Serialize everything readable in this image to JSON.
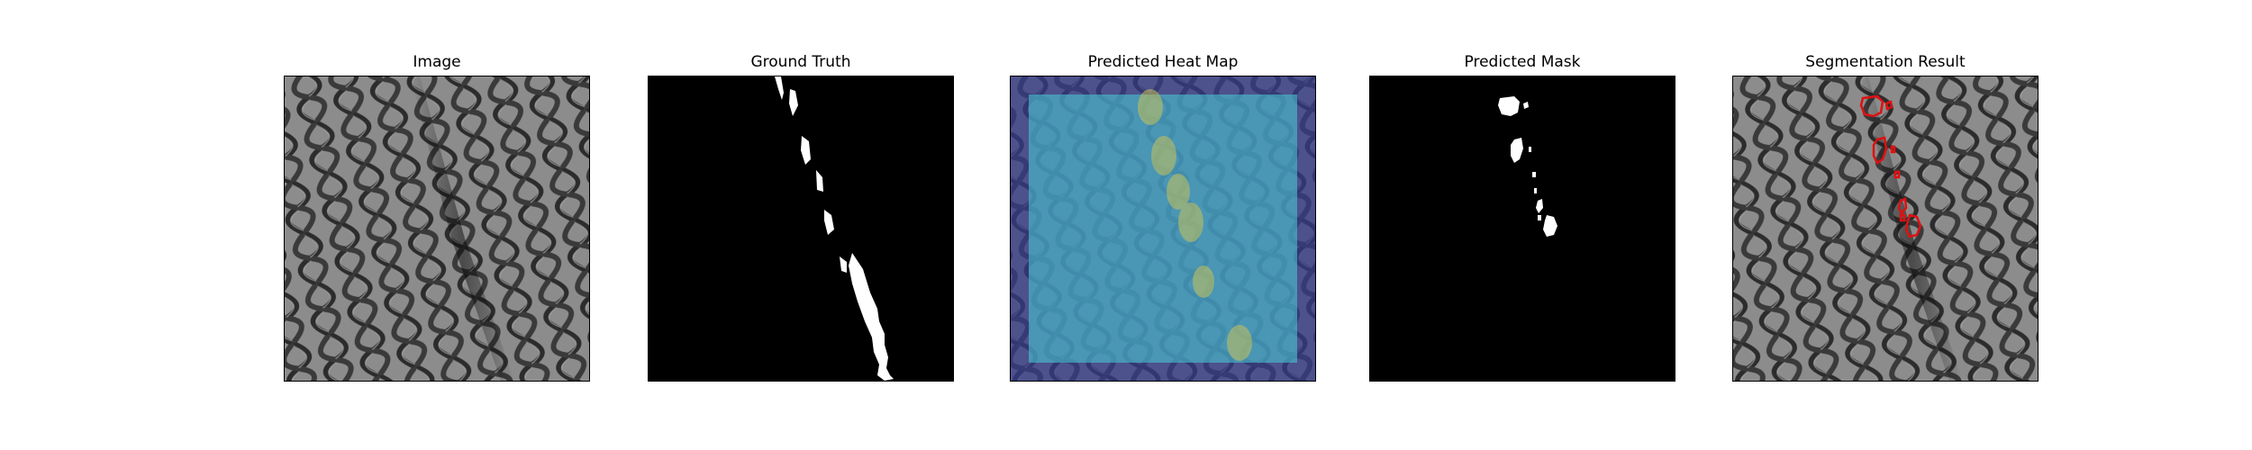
{
  "figure": {
    "panels": [
      {
        "title": "Image"
      },
      {
        "title": "Ground Truth"
      },
      {
        "title": "Predicted Heat Map"
      },
      {
        "title": "Predicted Mask"
      },
      {
        "title": "Segmentation Result"
      }
    ]
  },
  "colors": {
    "mesh_background": "#8a8a8a",
    "mesh_lines": "#2f2f2f",
    "mask_background": "#000000",
    "mask_foreground": "#ffffff",
    "heatmap_low": "#3b3f8f",
    "heatmap_mid": "#48b8c8",
    "heatmap_high": "#c8c060",
    "contour": "#e01010"
  }
}
